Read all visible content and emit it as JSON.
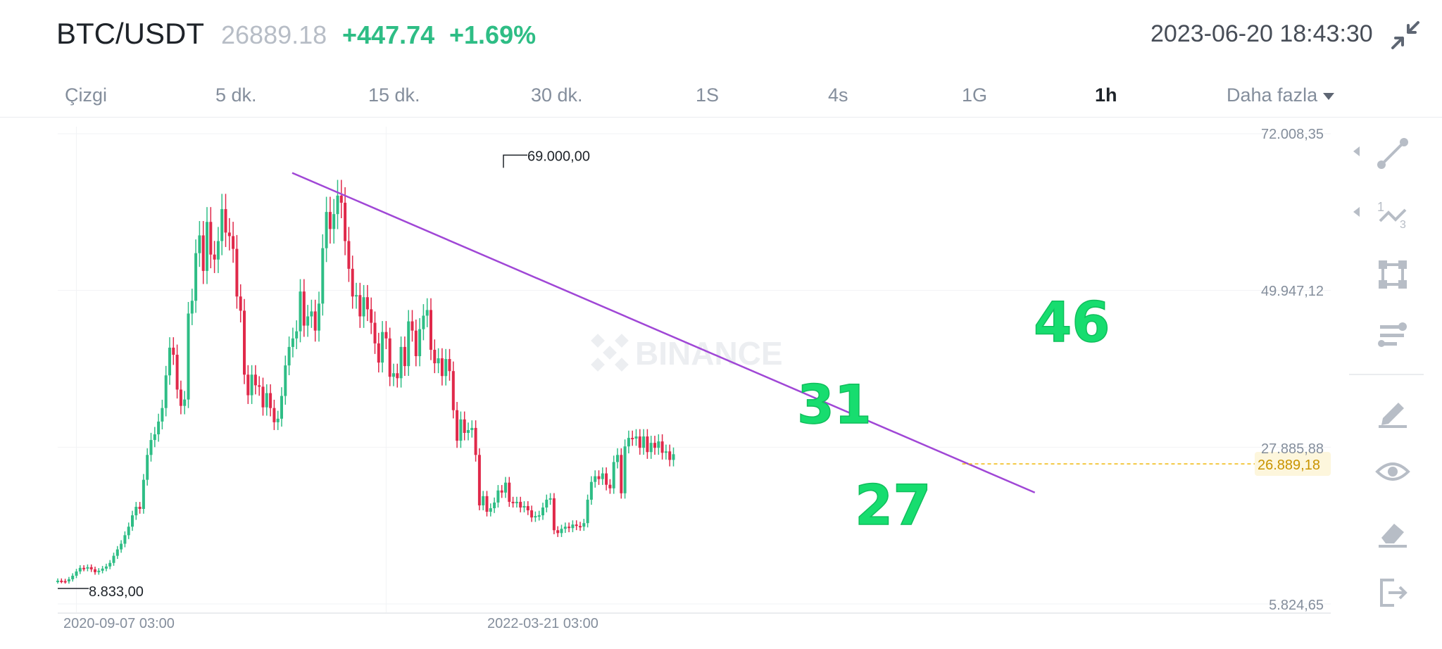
{
  "header": {
    "pair": "BTC/USDT",
    "last_price": "26889.18",
    "change": "+447.74",
    "change_pct": "+1.69%",
    "datetime": "2023-06-20 18:43:30",
    "collapse_icon": "collapse-arrows-icon"
  },
  "intervals": [
    {
      "label": "Çizgi",
      "active": false
    },
    {
      "label": "5 dk.",
      "active": false
    },
    {
      "label": "15 dk.",
      "active": false
    },
    {
      "label": "30 dk.",
      "active": false
    },
    {
      "label": "1S",
      "active": false
    },
    {
      "label": "4s",
      "active": false
    },
    {
      "label": "1G",
      "active": false
    },
    {
      "label": "1h",
      "active": true
    },
    {
      "label": "Daha fazla",
      "active": false
    }
  ],
  "toolbar": {
    "tools": [
      "trend-line-icon",
      "fibonacci-icon",
      "rectangle-icon",
      "indicators-icon",
      "pencil-icon",
      "eye-icon",
      "eraser-icon",
      "exit-icon"
    ]
  },
  "colors": {
    "up": "#2ebd85",
    "down": "#e0294a",
    "trendline": "#a047d6",
    "annotation": "#17dd6f",
    "current_price": "#f0b90b"
  },
  "chart_data": {
    "type": "candlestick",
    "watermark": "BINANCE",
    "y_ticks": [
      {
        "value": 72008.35,
        "label": "72.008,35"
      },
      {
        "value": 49947.12,
        "label": "49.947,12"
      },
      {
        "value": 27885.88,
        "label": "27.885,88"
      },
      {
        "value": 5824.65,
        "label": "5.824,65"
      }
    ],
    "ylim": [
      5824.65,
      74000
    ],
    "x_ticks": [
      {
        "label": "2020-09-07 03:00",
        "index": 5
      },
      {
        "label": "2022-03-21 03:00",
        "index": 88
      }
    ],
    "current_price": {
      "value": 26889.18,
      "label": "26.889,18"
    },
    "high_marker": {
      "value": 69000,
      "label": "69.000,00",
      "index": 70
    },
    "low_marker": {
      "value": 8833,
      "label": "8.833,00",
      "index": 1
    },
    "trendline": [
      {
        "index": 30,
        "value": 66500
      },
      {
        "index": 159,
        "value": 21500
      }
    ],
    "annotations": [
      "46",
      "31",
      "27"
    ],
    "close": [
      9100,
      9050,
      9000,
      9300,
      9800,
      10400,
      10900,
      10800,
      11000,
      10700,
      10300,
      10500,
      10800,
      11100,
      11600,
      12600,
      13500,
      14300,
      15500,
      16700,
      18300,
      19500,
      19200,
      23300,
      26800,
      28900,
      29700,
      31500,
      33400,
      38000,
      41900,
      40900,
      36000,
      33700,
      34600,
      46700,
      48500,
      55200,
      57700,
      52700,
      59600,
      55000,
      54300,
      56900,
      61400,
      58100,
      57600,
      55800,
      49100,
      47100,
      38100,
      35200,
      38100,
      36600,
      36400,
      33500,
      35500,
      33400,
      31400,
      31900,
      35100,
      39400,
      42000,
      43200,
      44200,
      49800,
      45000,
      46300,
      47000,
      44300,
      48100,
      55900,
      61000,
      58600,
      60700,
      63300,
      62300,
      56900,
      53000,
      49100,
      49300,
      46300,
      49000,
      47300,
      45400,
      42500,
      39800,
      44100,
      43200,
      37800,
      38300,
      37600,
      42000,
      39300,
      45600,
      44300,
      40700,
      44500,
      46400,
      47200,
      41600,
      39700,
      40400,
      37900,
      40300,
      38600,
      33100,
      28800,
      31800,
      29900,
      30300,
      30600,
      26800,
      19700,
      21000,
      18800,
      19300,
      20100,
      21800,
      21500,
      22900,
      20200,
      20100,
      20200,
      19400,
      19600,
      19000,
      18000,
      18200,
      18300,
      19400,
      20500,
      20700,
      16200,
      15800,
      16400,
      16700,
      16500,
      17000,
      16800,
      16700,
      17200,
      20500,
      23000,
      23800,
      23400,
      24200,
      22600,
      22100,
      25800,
      26800,
      21400,
      28000,
      29200,
      29100,
      29400,
      27800,
      29400,
      27200,
      28500,
      27800,
      28700,
      27100,
      27300,
      26100,
      26900
    ]
  }
}
